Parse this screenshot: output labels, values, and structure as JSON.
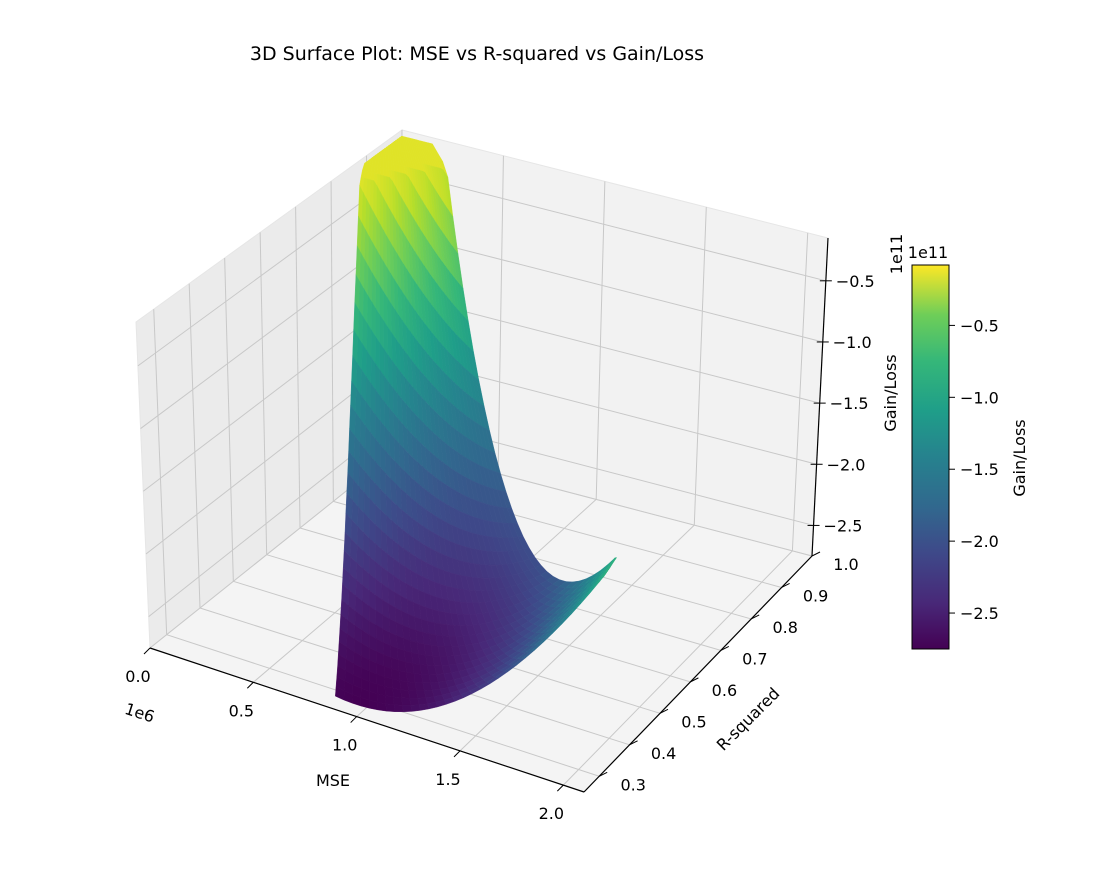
{
  "chart_data": {
    "type": "surface3d",
    "title": "3D Surface Plot: MSE vs R-squared vs Gain/Loss",
    "xlabel": "MSE",
    "ylabel": "R-squared",
    "zlabel": "Gain/Loss",
    "x_offset": "1e6",
    "z_offset": "1e11",
    "x_range": [
      0,
      2.1
    ],
    "y_range": [
      0.25,
      1.0
    ],
    "z_range": [
      -2.75,
      -0.15
    ],
    "x_ticks": [
      "0.0",
      "0.5",
      "1.0",
      "1.5",
      "2.0"
    ],
    "y_ticks": [
      "0.3",
      "0.4",
      "0.5",
      "0.6",
      "0.7",
      "0.8",
      "0.9",
      "1.0"
    ],
    "z_ticks": [
      "−0.5",
      "−1.0",
      "−1.5",
      "−2.0",
      "−2.5"
    ],
    "colormap": "viridis",
    "colorbar": {
      "label": "Gain/Loss",
      "offset": "1e11",
      "ticks": [
        "−0.5",
        "−1.0",
        "−1.5",
        "−2.0",
        "−2.5"
      ],
      "range": [
        -2.75,
        -0.08
      ]
    },
    "grid": true,
    "surface_shape": "paraboloid bowl, minimum near MSE≈0.9e6 and R-squared≈0.3, rising steeply toward low MSE / high R-squared"
  }
}
